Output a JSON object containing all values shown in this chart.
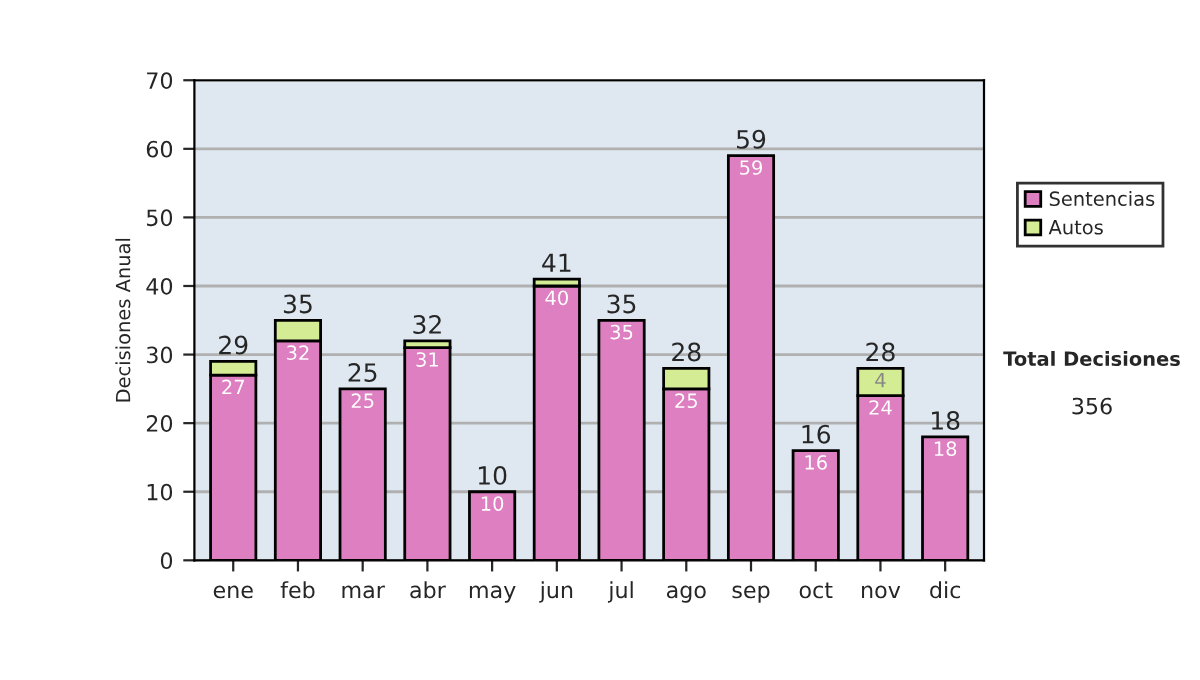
{
  "chart_data": {
    "type": "bar",
    "stacked": true,
    "ylabel": "Decisiones Anual",
    "categories": [
      "ene",
      "feb",
      "mar",
      "abr",
      "may",
      "jun",
      "jul",
      "ago",
      "sep",
      "oct",
      "nov",
      "dic"
    ],
    "series": [
      {
        "name": "Sentencias",
        "color": "#dd7fc0",
        "values": [
          27,
          32,
          25,
          31,
          10,
          40,
          35,
          25,
          59,
          16,
          24,
          18
        ],
        "value_labels": [
          "27",
          "32",
          "25",
          "31",
          "10",
          "40",
          "35",
          "25",
          "59",
          "16",
          "24",
          "18"
        ]
      },
      {
        "name": "Autos",
        "color": "#d4ec94",
        "values": [
          2,
          3,
          0,
          1,
          0,
          1,
          0,
          3,
          0,
          0,
          4,
          0
        ],
        "value_labels": [
          null,
          null,
          null,
          null,
          null,
          null,
          null,
          null,
          null,
          null,
          "4",
          null
        ]
      }
    ],
    "totals": [
      "29",
      "35",
      "25",
      "32",
      "10",
      "41",
      "35",
      "28",
      "59",
      "16",
      "28",
      "18"
    ],
    "ylim": [
      0,
      70
    ],
    "yticks": [
      0,
      10,
      20,
      30,
      40,
      50,
      60,
      70
    ],
    "grid": "y",
    "legend": "right",
    "annotations": [
      "Total Decisiones",
      "356"
    ]
  }
}
